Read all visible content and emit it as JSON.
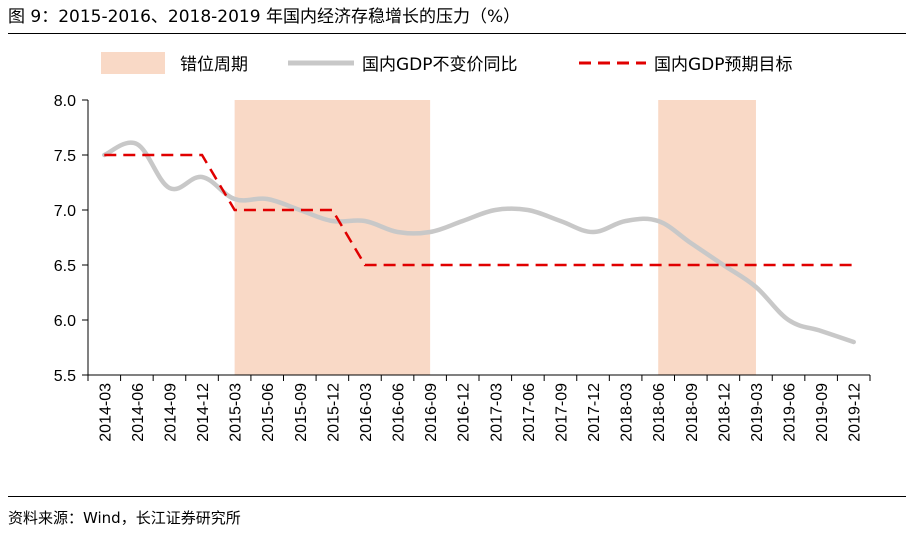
{
  "figure": {
    "title": "图 9：2015-2016、2018-2019 年国内经济存稳增长的压力（%）",
    "source": "资料来源：Wind，长江证券研究所"
  },
  "chart_data": {
    "type": "line",
    "title": "图 9：2015-2016、2018-2019 年国内经济存稳增长的压力（%）",
    "xlabel": "",
    "ylabel": "",
    "ylim": [
      5.5,
      8.0
    ],
    "yticks": [
      "8.0",
      "7.5",
      "7.0",
      "6.5",
      "6.0",
      "5.5"
    ],
    "ytick_values": [
      8.0,
      7.5,
      7.0,
      6.5,
      6.0,
      5.5
    ],
    "categories": [
      "2014-03",
      "2014-06",
      "2014-09",
      "2014-12",
      "2015-03",
      "2015-06",
      "2015-09",
      "2015-12",
      "2016-03",
      "2016-06",
      "2016-09",
      "2016-12",
      "2017-03",
      "2017-06",
      "2017-09",
      "2017-12",
      "2018-03",
      "2018-06",
      "2018-09",
      "2018-12",
      "2019-03",
      "2019-06",
      "2019-09",
      "2019-12"
    ],
    "legend_position": "top",
    "shaded_periods": {
      "name": "错位周期",
      "color": "#f9d9c6",
      "ranges": [
        [
          "2015-03",
          "2016-09"
        ],
        [
          "2018-06",
          "2019-03"
        ]
      ]
    },
    "series": [
      {
        "name": "国内GDP不变价同比",
        "style": "solid",
        "color": "#c8c8c8",
        "values": [
          7.5,
          7.6,
          7.2,
          7.3,
          7.1,
          7.1,
          7.0,
          6.9,
          6.9,
          6.8,
          6.8,
          6.9,
          7.0,
          7.0,
          6.9,
          6.8,
          6.9,
          6.9,
          6.7,
          6.5,
          6.3,
          6.0,
          5.9,
          5.8
        ]
      },
      {
        "name": "国内GDP预期目标",
        "style": "dashed",
        "color": "#e00000",
        "values": [
          7.5,
          7.5,
          7.5,
          7.5,
          7.0,
          7.0,
          7.0,
          7.0,
          6.5,
          6.5,
          6.5,
          6.5,
          6.5,
          6.5,
          6.5,
          6.5,
          6.5,
          6.5,
          6.5,
          6.5,
          6.5,
          6.5,
          6.5,
          6.5
        ]
      }
    ]
  }
}
